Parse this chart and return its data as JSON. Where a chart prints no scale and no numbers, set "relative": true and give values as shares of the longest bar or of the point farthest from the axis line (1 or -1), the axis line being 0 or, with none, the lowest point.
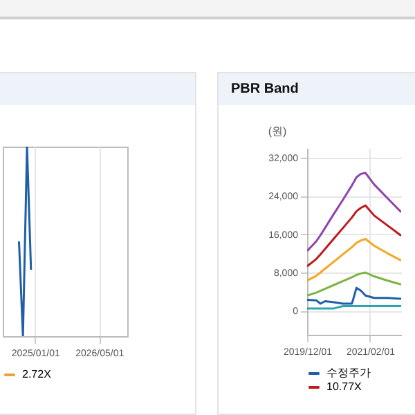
{
  "chart_data": [
    {
      "type": "line",
      "relative": true,
      "x": [
        "2024-09-01",
        "2024-10-01",
        "2024-11-01",
        "2024-12-01"
      ],
      "xlim": [
        "2024-05-01",
        "2026-12-01"
      ],
      "xticks": [
        {
          "value": "2025-01-01",
          "label": "2025/01/01"
        },
        {
          "value": "2026-05-01",
          "label": "2026/05/01"
        }
      ],
      "grid": "x",
      "legend": "bottom",
      "series": [
        {
          "color": "#1f5fa8",
          "values": [
            0.5,
            0,
            1,
            0.35
          ]
        },
        {
          "name": "2.72X",
          "color": "#e8a33a",
          "values": [
            null,
            null,
            null,
            null
          ]
        }
      ]
    },
    {
      "type": "line",
      "title": "PBR Band",
      "ylabel": "(원)",
      "x": [
        "2019-12-01",
        "2020-02-01",
        "2020-03-01",
        "2020-04-01",
        "2020-06-01",
        "2020-08-01",
        "2020-10-01",
        "2020-11-01",
        "2020-12-01",
        "2021-01-01",
        "2021-03-01",
        "2021-06-01",
        "2021-09-01"
      ],
      "xlim": [
        "2019-12-01",
        "2021-09-01"
      ],
      "xticks": [
        {
          "value": "2019-12-01",
          "label": "2019/12/01"
        },
        {
          "value": "2021-02-01",
          "label": "2021/02/01"
        }
      ],
      "ylim": [
        -5000,
        34000
      ],
      "yticks": [
        0,
        {
          "value": 8000,
          "label": "8,000"
        },
        {
          "value": 16000,
          "label": "16,000"
        },
        {
          "value": 24000,
          "label": "24,000"
        },
        {
          "value": 32000,
          "label": "32,000"
        }
      ],
      "grid": true,
      "legend": "bottom",
      "series": [
        {
          "name": "수정주가",
          "color": "#1f5fa8",
          "values": [
            2300,
            2200,
            1500,
            2000,
            1800,
            1500,
            1500,
            4800,
            4200,
            3200,
            2700,
            2700,
            2500
          ]
        },
        {
          "color": "#2aa6b0",
          "values": [
            500,
            500,
            500,
            500,
            500,
            1000,
            1000,
            1000,
            1000,
            1000,
            1000,
            1000,
            1000
          ]
        },
        {
          "color": "#7cb342",
          "values": [
            3200,
            3800,
            4200,
            4600,
            5400,
            6200,
            7000,
            7500,
            7800,
            8000,
            7200,
            6300,
            5500
          ]
        },
        {
          "color": "#f5a623",
          "values": [
            6300,
            7300,
            8000,
            8800,
            10300,
            11800,
            13300,
            14200,
            14700,
            15000,
            13600,
            12000,
            10500
          ]
        },
        {
          "name": "10.77X",
          "color": "#c0191f",
          "values": [
            9300,
            10800,
            11800,
            12900,
            15100,
            17300,
            19500,
            20800,
            21500,
            22000,
            19900,
            17800,
            15700
          ]
        },
        {
          "color": "#8e44ad",
          "values": [
            12500,
            14500,
            15800,
            17300,
            20300,
            23200,
            26200,
            27900,
            28600,
            28800,
            26400,
            23500,
            20600
          ]
        }
      ]
    }
  ]
}
